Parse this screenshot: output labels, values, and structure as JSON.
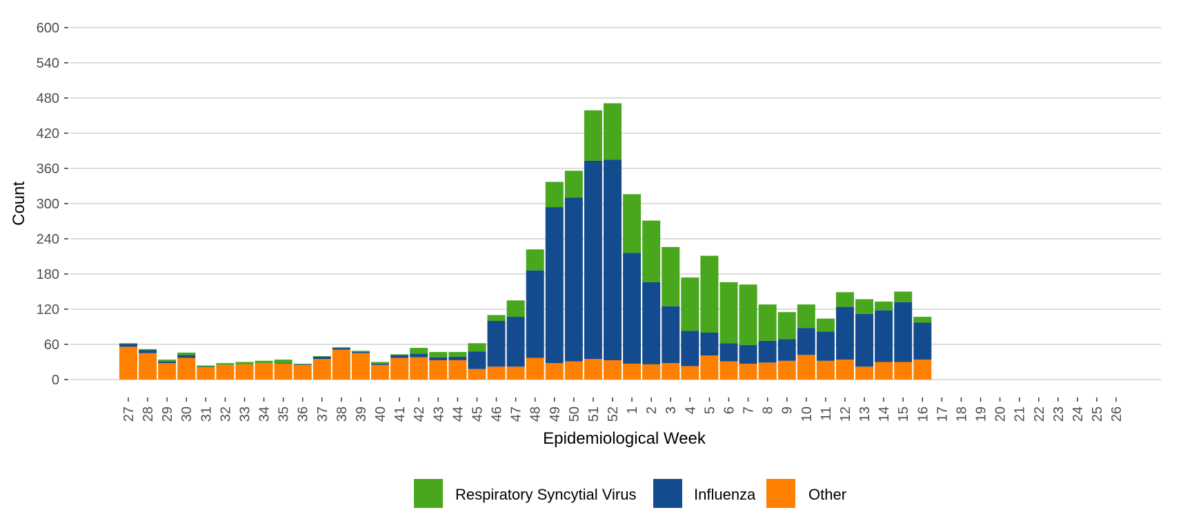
{
  "chart_data": {
    "type": "bar",
    "stacked": true,
    "xlabel": "Epidemiological Week",
    "ylabel": "Count",
    "ylim": [
      0,
      600
    ],
    "yticks": [
      0,
      60,
      120,
      180,
      240,
      300,
      360,
      420,
      480,
      540,
      600
    ],
    "grid": "horizontal",
    "legend_position": "bottom",
    "categories": [
      "27",
      "28",
      "29",
      "30",
      "31",
      "32",
      "33",
      "34",
      "35",
      "36",
      "37",
      "38",
      "39",
      "40",
      "41",
      "42",
      "43",
      "44",
      "45",
      "46",
      "47",
      "48",
      "49",
      "50",
      "51",
      "52",
      "1",
      "2",
      "3",
      "4",
      "5",
      "6",
      "7",
      "8",
      "9",
      "10",
      "11",
      "12",
      "13",
      "14",
      "15",
      "16",
      "17",
      "18",
      "19",
      "20",
      "21",
      "22",
      "23",
      "24",
      "25",
      "26"
    ],
    "series": [
      {
        "name": "Other",
        "color": "#ff7f00",
        "values": [
          56,
          45,
          28,
          37,
          21,
          25,
          26,
          28,
          27,
          25,
          35,
          51,
          45,
          25,
          37,
          38,
          33,
          33,
          18,
          22,
          22,
          37,
          28,
          31,
          35,
          33,
          27,
          26,
          28,
          23,
          41,
          31,
          27,
          29,
          32,
          42,
          32,
          34,
          22,
          30,
          30,
          34,
          0,
          0,
          0,
          0,
          0,
          0,
          0,
          0,
          0,
          0
        ]
      },
      {
        "name": "Influenza",
        "color": "#134b8e",
        "values": [
          5,
          5,
          3,
          5,
          1,
          0,
          0,
          0,
          1,
          1,
          4,
          3,
          2,
          2,
          5,
          6,
          5,
          6,
          30,
          78,
          85,
          149,
          266,
          279,
          338,
          342,
          189,
          140,
          97,
          60,
          39,
          31,
          32,
          37,
          37,
          46,
          50,
          90,
          90,
          88,
          102,
          63,
          0,
          0,
          0,
          0,
          0,
          0,
          0,
          0,
          0,
          0
        ]
      },
      {
        "name": "Respiratory Syncytial Virus",
        "color": "#49a71d",
        "values": [
          1,
          2,
          3,
          4,
          2,
          3,
          4,
          4,
          6,
          1,
          1,
          1,
          2,
          3,
          1,
          10,
          9,
          8,
          14,
          10,
          28,
          36,
          43,
          46,
          86,
          96,
          100,
          105,
          101,
          91,
          131,
          104,
          103,
          62,
          46,
          40,
          22,
          25,
          25,
          15,
          18,
          10,
          0,
          0,
          0,
          0,
          0,
          0,
          0,
          0,
          0,
          0
        ]
      }
    ],
    "legend_order": [
      "Respiratory Syncytial Virus",
      "Influenza",
      "Other"
    ]
  }
}
